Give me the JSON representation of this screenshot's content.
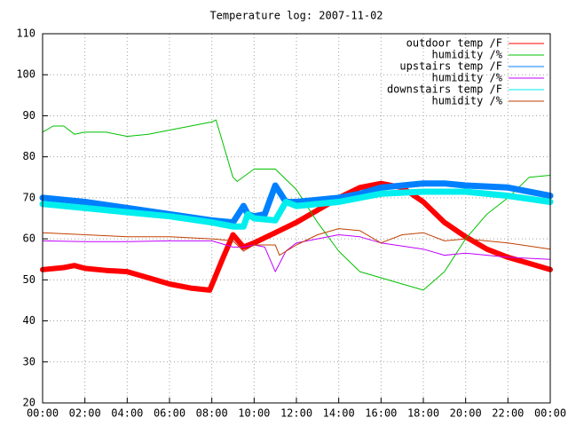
{
  "chart_data": {
    "type": "line",
    "title": "Temperature log: 2007-11-02",
    "xlim": [
      0,
      24
    ],
    "xticks": [
      {
        "value": 0,
        "label": "00:00"
      },
      {
        "value": 2,
        "label": "02:00"
      },
      {
        "value": 4,
        "label": "04:00"
      },
      {
        "value": 6,
        "label": "06:00"
      },
      {
        "value": 8,
        "label": "08:00"
      },
      {
        "value": 10,
        "label": "10:00"
      },
      {
        "value": 12,
        "label": "12:00"
      },
      {
        "value": 14,
        "label": "14:00"
      },
      {
        "value": 16,
        "label": "16:00"
      },
      {
        "value": 18,
        "label": "18:00"
      },
      {
        "value": 20,
        "label": "20:00"
      },
      {
        "value": 22,
        "label": "22:00"
      },
      {
        "value": 24,
        "label": "00:00"
      }
    ],
    "ylim": [
      20,
      110
    ],
    "yticks": [
      20,
      30,
      40,
      50,
      60,
      70,
      80,
      90,
      100,
      110
    ],
    "grid": true,
    "legend": "top-right",
    "series": [
      {
        "name": "outdoor temp /F",
        "color": "#ff0000",
        "width": 6,
        "x": [
          0,
          1,
          1.5,
          2,
          3,
          4,
          5,
          6,
          7,
          7.9,
          8.5,
          9,
          9.5,
          10,
          11,
          12,
          13,
          14,
          15,
          16,
          17,
          18,
          19,
          20,
          21,
          22,
          23,
          24
        ],
        "values": [
          52.5,
          53,
          53.5,
          52.8,
          52.3,
          52,
          50.5,
          49,
          48,
          47.5,
          55,
          61,
          58,
          59,
          61.5,
          64,
          67,
          70,
          72.5,
          73.5,
          72.5,
          69,
          64,
          60.5,
          57.5,
          55.5,
          54,
          52.5
        ]
      },
      {
        "name": "humidity /%",
        "color": "#00c000",
        "width": 1,
        "x": [
          0,
          0.5,
          1,
          1.5,
          2,
          3,
          4,
          5,
          6,
          7,
          8,
          8.2,
          9,
          9.2,
          10,
          11,
          12,
          13,
          14,
          15,
          16,
          17,
          18,
          19,
          20,
          21,
          22,
          23,
          24
        ],
        "values": [
          86,
          87.5,
          87.5,
          85.5,
          86,
          86,
          85,
          85.5,
          86.5,
          87.5,
          88.5,
          89,
          75,
          74,
          77,
          77,
          72,
          64,
          57,
          52,
          50.5,
          49,
          47.5,
          52,
          60,
          66,
          70,
          75,
          75.5
        ]
      },
      {
        "name": "upstairs temp /F",
        "color": "#0080ff",
        "width": 7,
        "x": [
          0,
          2,
          4,
          6,
          8,
          9,
          9.5,
          9.7,
          10,
          10.5,
          11,
          11.5,
          12,
          14,
          15,
          16,
          18,
          19,
          20,
          22,
          24
        ],
        "values": [
          70,
          69,
          67.5,
          66,
          64.5,
          64,
          68,
          66,
          65.5,
          66,
          73,
          69,
          69,
          70,
          71,
          72.5,
          73.5,
          73.5,
          73,
          72.5,
          70.5
        ]
      },
      {
        "name": "humidity /%",
        "color": "#c000ff",
        "width": 1,
        "x": [
          0,
          2,
          4,
          6,
          8,
          9,
          9.5,
          10,
          10.5,
          11,
          11.5,
          12,
          13,
          14,
          15,
          16,
          18,
          19,
          20,
          22,
          24
        ],
        "values": [
          59.5,
          59.3,
          59.3,
          59.5,
          59.5,
          58,
          58,
          58.5,
          58,
          52,
          57,
          59,
          60,
          61,
          60.5,
          59,
          57.5,
          56,
          56.5,
          55.5,
          55
        ]
      },
      {
        "name": "downstairs temp /F",
        "color": "#00eeee",
        "width": 7,
        "x": [
          0,
          2,
          4,
          6,
          8,
          9,
          9.5,
          9.7,
          10,
          11,
          11.5,
          12,
          14,
          16,
          18,
          20,
          22,
          24
        ],
        "values": [
          68.5,
          67.5,
          66.5,
          65.5,
          64,
          63,
          63,
          66,
          65,
          64.5,
          69,
          68,
          69,
          71,
          71.5,
          71.5,
          70.5,
          69
        ]
      },
      {
        "name": "humidity /%",
        "color": "#c04000",
        "width": 1,
        "x": [
          0,
          2,
          4,
          6,
          8,
          9,
          9.5,
          10,
          11,
          11.2,
          12,
          13,
          14,
          15,
          16,
          17,
          18,
          19,
          20,
          22,
          24
        ],
        "values": [
          61.5,
          61,
          60.5,
          60.5,
          60,
          59.5,
          57,
          58.5,
          58.5,
          56,
          58.5,
          61,
          62.5,
          62,
          59,
          61,
          61.5,
          59.5,
          60,
          59,
          57.5
        ]
      }
    ]
  }
}
